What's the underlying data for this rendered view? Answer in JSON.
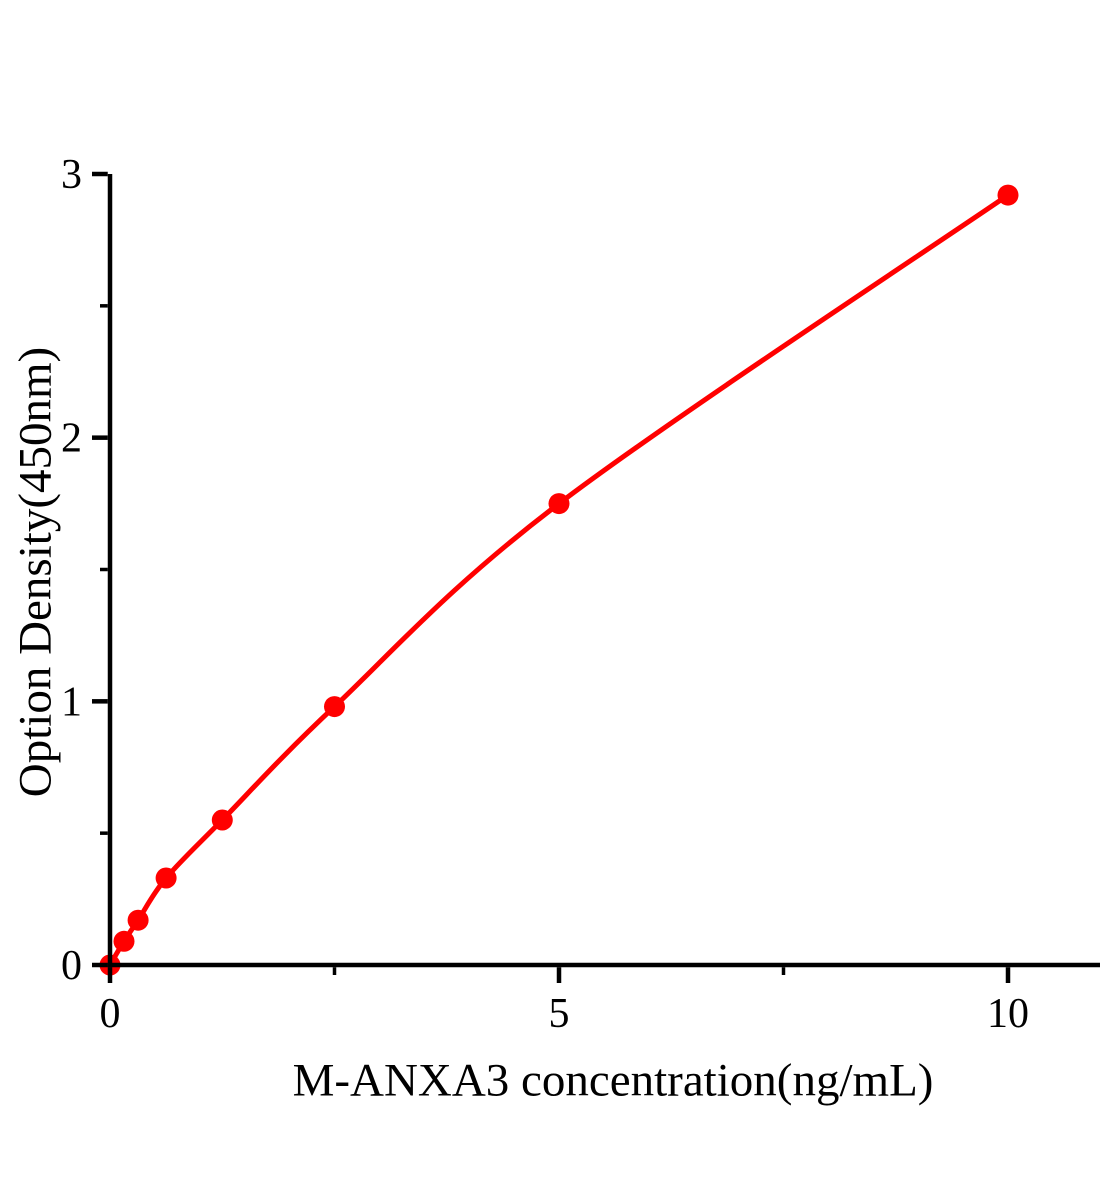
{
  "figure": {
    "background": "#ffffff",
    "description": "ELISA standard curve"
  },
  "chart_data": {
    "type": "line",
    "title": "",
    "xlabel": "M-ANXA3 concentration(ng/mL)",
    "ylabel": "Option Density(450nm)",
    "x": [
      0,
      0.156,
      0.3125,
      0.625,
      1.25,
      2.5,
      5,
      10
    ],
    "y": [
      0,
      0.09,
      0.17,
      0.33,
      0.55,
      0.98,
      1.75,
      2.92
    ],
    "xlim": [
      0,
      11
    ],
    "ylim": [
      0,
      3
    ],
    "x_major_ticks": [
      0,
      5,
      10
    ],
    "x_minor_ticks": [
      2.5,
      7.5
    ],
    "x_tick_labels": [
      "0",
      "5",
      "10"
    ],
    "y_major_ticks": [
      0,
      1,
      2,
      3
    ],
    "y_minor_ticks": [
      0.5,
      1.5,
      2.5
    ],
    "y_tick_labels": [
      "0",
      "1",
      "2",
      "3"
    ],
    "grid": false,
    "legend": null,
    "marker": "circle",
    "series_color": "#FF0000",
    "axis_color": "#000000"
  }
}
